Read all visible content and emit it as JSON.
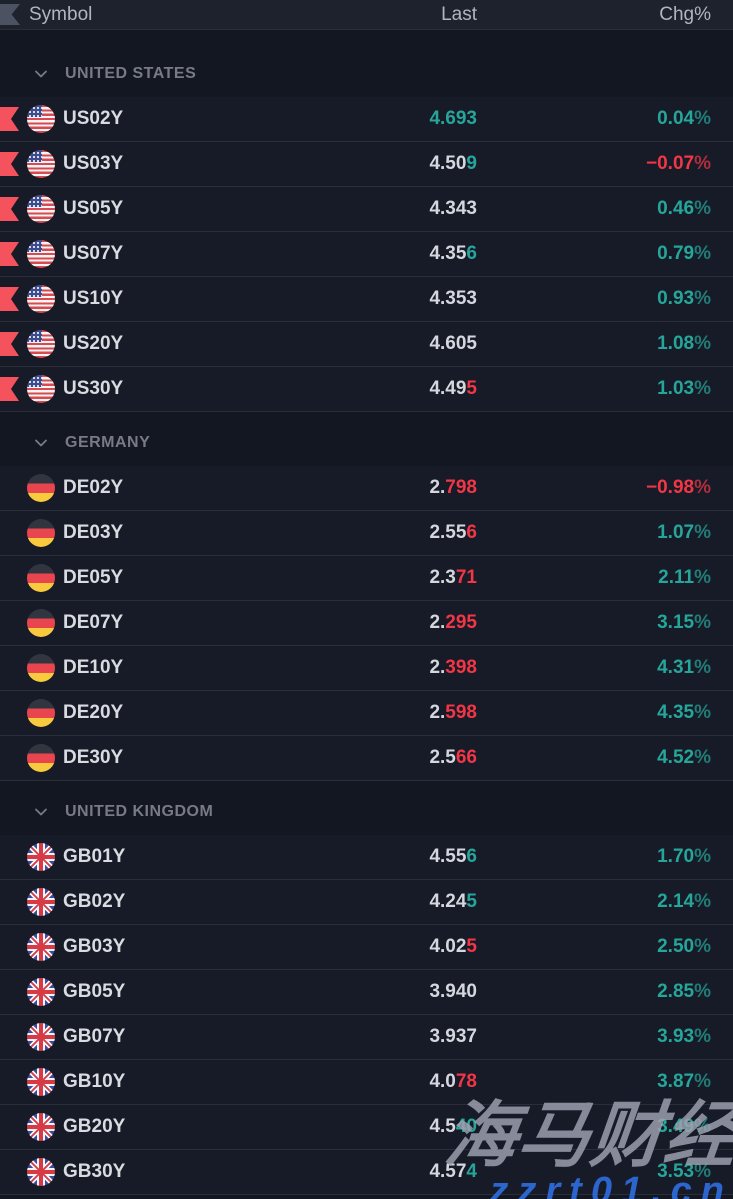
{
  "header": {
    "symbol": "Symbol",
    "last": "Last",
    "chg": "Chg%"
  },
  "colors": {
    "up": "#26a69a",
    "down": "#f23645",
    "neutral": "#d4d7dd",
    "flag_marker": "#f4525c",
    "background": "#131722"
  },
  "groups": [
    {
      "label": "UNITED STATES",
      "country": "us",
      "rows": [
        {
          "symbol": "US02Y",
          "flagged": true,
          "last_parts": [
            {
              "text": "4.693",
              "color": "up"
            }
          ],
          "chg": "0.04%",
          "chg_dir": "up"
        },
        {
          "symbol": "US03Y",
          "flagged": true,
          "last_parts": [
            {
              "text": "4.50",
              "color": "neutral"
            },
            {
              "text": "9",
              "color": "up"
            }
          ],
          "chg": "−0.07%",
          "chg_dir": "down"
        },
        {
          "symbol": "US05Y",
          "flagged": true,
          "last_parts": [
            {
              "text": "4.343",
              "color": "neutral"
            }
          ],
          "chg": "0.46%",
          "chg_dir": "up"
        },
        {
          "symbol": "US07Y",
          "flagged": true,
          "last_parts": [
            {
              "text": "4.35",
              "color": "neutral"
            },
            {
              "text": "6",
              "color": "up"
            }
          ],
          "chg": "0.79%",
          "chg_dir": "up"
        },
        {
          "symbol": "US10Y",
          "flagged": true,
          "last_parts": [
            {
              "text": "4.353",
              "color": "neutral"
            }
          ],
          "chg": "0.93%",
          "chg_dir": "up"
        },
        {
          "symbol": "US20Y",
          "flagged": true,
          "last_parts": [
            {
              "text": "4.605",
              "color": "neutral"
            }
          ],
          "chg": "1.08%",
          "chg_dir": "up"
        },
        {
          "symbol": "US30Y",
          "flagged": true,
          "last_parts": [
            {
              "text": "4.49",
              "color": "neutral"
            },
            {
              "text": "5",
              "color": "down"
            }
          ],
          "chg": "1.03%",
          "chg_dir": "up"
        }
      ]
    },
    {
      "label": "GERMANY",
      "country": "de",
      "rows": [
        {
          "symbol": "DE02Y",
          "flagged": false,
          "last_parts": [
            {
              "text": "2.",
              "color": "neutral"
            },
            {
              "text": "798",
              "color": "down"
            }
          ],
          "chg": "−0.98%",
          "chg_dir": "down"
        },
        {
          "symbol": "DE03Y",
          "flagged": false,
          "last_parts": [
            {
              "text": "2.55",
              "color": "neutral"
            },
            {
              "text": "6",
              "color": "down"
            }
          ],
          "chg": "1.07%",
          "chg_dir": "up"
        },
        {
          "symbol": "DE05Y",
          "flagged": false,
          "last_parts": [
            {
              "text": "2.3",
              "color": "neutral"
            },
            {
              "text": "71",
              "color": "down"
            }
          ],
          "chg": "2.11%",
          "chg_dir": "up"
        },
        {
          "symbol": "DE07Y",
          "flagged": false,
          "last_parts": [
            {
              "text": "2.",
              "color": "neutral"
            },
            {
              "text": "295",
              "color": "down"
            }
          ],
          "chg": "3.15%",
          "chg_dir": "up"
        },
        {
          "symbol": "DE10Y",
          "flagged": false,
          "last_parts": [
            {
              "text": "2.",
              "color": "neutral"
            },
            {
              "text": "398",
              "color": "down"
            }
          ],
          "chg": "4.31%",
          "chg_dir": "up"
        },
        {
          "symbol": "DE20Y",
          "flagged": false,
          "last_parts": [
            {
              "text": "2.",
              "color": "neutral"
            },
            {
              "text": "598",
              "color": "down"
            }
          ],
          "chg": "4.35%",
          "chg_dir": "up"
        },
        {
          "symbol": "DE30Y",
          "flagged": false,
          "last_parts": [
            {
              "text": "2.5",
              "color": "neutral"
            },
            {
              "text": "66",
              "color": "down"
            }
          ],
          "chg": "4.52%",
          "chg_dir": "up"
        }
      ]
    },
    {
      "label": "UNITED KINGDOM",
      "country": "gb",
      "rows": [
        {
          "symbol": "GB01Y",
          "flagged": false,
          "last_parts": [
            {
              "text": "4.55",
              "color": "neutral"
            },
            {
              "text": "6",
              "color": "up"
            }
          ],
          "chg": "1.70%",
          "chg_dir": "up"
        },
        {
          "symbol": "GB02Y",
          "flagged": false,
          "last_parts": [
            {
              "text": "4.24",
              "color": "neutral"
            },
            {
              "text": "5",
              "color": "up"
            }
          ],
          "chg": "2.14%",
          "chg_dir": "up"
        },
        {
          "symbol": "GB03Y",
          "flagged": false,
          "last_parts": [
            {
              "text": "4.02",
              "color": "neutral"
            },
            {
              "text": "5",
              "color": "down"
            }
          ],
          "chg": "2.50%",
          "chg_dir": "up"
        },
        {
          "symbol": "GB05Y",
          "flagged": false,
          "last_parts": [
            {
              "text": "3.940",
              "color": "neutral"
            }
          ],
          "chg": "2.85%",
          "chg_dir": "up"
        },
        {
          "symbol": "GB07Y",
          "flagged": false,
          "last_parts": [
            {
              "text": "3.937",
              "color": "neutral"
            }
          ],
          "chg": "3.93%",
          "chg_dir": "up"
        },
        {
          "symbol": "GB10Y",
          "flagged": false,
          "last_parts": [
            {
              "text": "4.0",
              "color": "neutral"
            },
            {
              "text": "78",
              "color": "down"
            }
          ],
          "chg": "3.87%",
          "chg_dir": "up"
        },
        {
          "symbol": "GB20Y",
          "flagged": false,
          "last_parts": [
            {
              "text": "4.5",
              "color": "neutral"
            },
            {
              "text": "40",
              "color": "up"
            }
          ],
          "chg": "3.49%",
          "chg_dir": "up"
        },
        {
          "symbol": "GB30Y",
          "flagged": false,
          "last_parts": [
            {
              "text": "4.57",
              "color": "neutral"
            },
            {
              "text": "4",
              "color": "up"
            }
          ],
          "chg": "3.53%",
          "chg_dir": "up"
        }
      ]
    }
  ],
  "watermark": {
    "title": "海马财经",
    "url": "zzrt01.cn"
  }
}
